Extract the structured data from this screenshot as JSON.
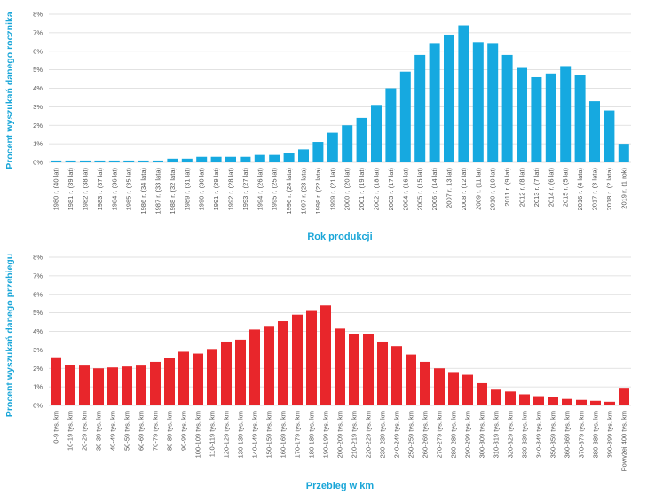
{
  "chart_data": [
    {
      "type": "bar",
      "title": "",
      "xlabel": "Rok produkcji",
      "ylabel": "Procent wyszukań danego rocznika",
      "ylim": [
        0,
        8
      ],
      "yticks": [
        "0%",
        "1%",
        "2%",
        "3%",
        "4%",
        "5%",
        "6%",
        "7%",
        "8%"
      ],
      "grid": true,
      "color": "#16a9e0",
      "categories": [
        "1980 r. (40 lat)",
        "1981 r. (39 lat)",
        "1982 r. (38 lat)",
        "1983 r. (37 lat)",
        "1984 r. (36 lat)",
        "1985 r. (35 lat)",
        "1986 r. (34 lata)",
        "1987 r. (33 lata)",
        "1988 r. (32 lata)",
        "1989 r. (31 lat)",
        "1990 r. (30 lat)",
        "1991 r. (29 lat)",
        "1992 r. (28 lat)",
        "1993 r. (27 lat)",
        "1994 r. (26 lat)",
        "1995 r. (25 lat)",
        "1996 r. (24 lata)",
        "1997 r. (23 lata)",
        "1998 r. (22 lata)",
        "1999 r. (21 lat)",
        "2000 r. (20 lat)",
        "2001 r. (19 lat)",
        "2002 r. (18 lat)",
        "2003 r. (17 lat)",
        "2004 r. (16 lat)",
        "2005 r. (15 lat)",
        "2006 r. (14 lat)",
        "2007 r. 13 lat)",
        "2008 r. (12 lat)",
        "2009 r. (11 lat)",
        "2010 r. (10 lat)",
        "2011 r. (9 lat)",
        "2012 r. (8 lat)",
        "2013 r. (7 lat)",
        "2014 r. (6 lat)",
        "2015 r. (5 lat)",
        "2016 r. (4 lata)",
        "2017 r. (3 lata)",
        "2018 r. (2 lata)",
        "2019 r. (1 rok)"
      ],
      "values": [
        0.1,
        0.1,
        0.1,
        0.1,
        0.1,
        0.1,
        0.1,
        0.1,
        0.2,
        0.2,
        0.3,
        0.3,
        0.3,
        0.3,
        0.4,
        0.4,
        0.5,
        0.7,
        1.1,
        1.6,
        2.0,
        2.4,
        3.1,
        4.0,
        4.9,
        5.8,
        6.4,
        6.9,
        7.4,
        6.5,
        6.4,
        5.8,
        5.1,
        4.6,
        4.8,
        5.2,
        4.7,
        3.3,
        2.8,
        1.0
      ]
    },
    {
      "type": "bar",
      "title": "",
      "xlabel": "Przebieg w km",
      "ylabel": "Procent wyszukań danego przebiegu",
      "ylim": [
        0,
        8
      ],
      "yticks": [
        "0%",
        "1%",
        "2%",
        "3%",
        "4%",
        "5%",
        "6%",
        "7%",
        "8%"
      ],
      "grid": true,
      "color": "#e8262b",
      "categories": [
        "0-9 tys. km",
        "10-19 tys. km",
        "20-29 tys. km",
        "30-39 tys. km",
        "40-49 tys. km",
        "50-59 tys. km",
        "60-69 tys. km",
        "70-79 tys. km",
        "80-89 tys. km",
        "90-99 tys. km",
        "100-109 tys. km",
        "110-119 tys. km",
        "120-129 tys. km",
        "130-139 tys. km",
        "140-149 tys. km",
        "150-159 tys. km",
        "160-169 tys. km",
        "170-179 tys. km",
        "180-189 tys. km",
        "190-199 tys. km",
        "200-209 tys. km",
        "210-219 tys. km",
        "220-229 tys. km",
        "230-239 tys. km",
        "240-249 tys. km",
        "250-259 tys. km",
        "260-269 tys. km",
        "270-279 tys. km",
        "280-289 tys. km",
        "290-299 tys. km",
        "300-309 tys. km",
        "310-319 tys. km",
        "320-329 tys. km",
        "330-339 tys. km",
        "340-349 tys. km",
        "350-359 tys. km",
        "360-369 tys. km",
        "370-379 tys. km",
        "380-389 tys. km",
        "390-399 tys. km",
        "Powyżej 400 tys. km"
      ],
      "values": [
        2.6,
        2.2,
        2.15,
        2.0,
        2.05,
        2.1,
        2.15,
        2.35,
        2.55,
        2.9,
        2.8,
        3.05,
        3.45,
        3.55,
        4.1,
        4.25,
        4.55,
        4.9,
        5.1,
        5.4,
        4.15,
        3.85,
        3.85,
        3.45,
        3.2,
        2.75,
        2.35,
        2.0,
        1.8,
        1.65,
        1.2,
        0.85,
        0.75,
        0.6,
        0.5,
        0.45,
        0.35,
        0.3,
        0.25,
        0.2,
        0.95
      ]
    }
  ]
}
